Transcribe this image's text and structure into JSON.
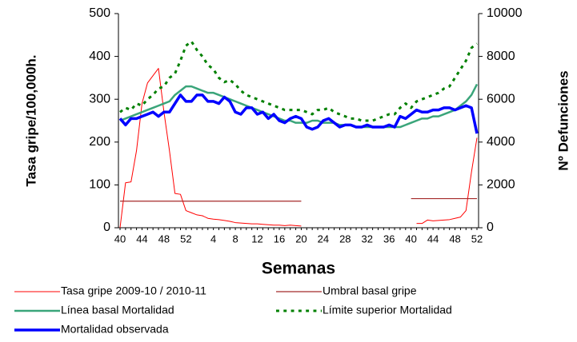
{
  "chart_data": {
    "type": "line",
    "categories": [
      40,
      null,
      null,
      null,
      44,
      null,
      null,
      null,
      48,
      null,
      null,
      null,
      52,
      null,
      null,
      null,
      null,
      4,
      null,
      null,
      null,
      8,
      null,
      null,
      null,
      12,
      null,
      null,
      null,
      16,
      null,
      null,
      null,
      20,
      null,
      null,
      null,
      24,
      null,
      null,
      null,
      28,
      null,
      null,
      null,
      32,
      null,
      null,
      null,
      36,
      null,
      null,
      null,
      40,
      null,
      null,
      null,
      44,
      null,
      null,
      null,
      48,
      null,
      null,
      null,
      52
    ],
    "x_label": "Semanas",
    "y_label": "Tasa gripe/100,000h.",
    "y2_label": "Nº Defunciones",
    "ylim": [
      0,
      500
    ],
    "yticks": [
      0,
      100,
      200,
      300,
      400,
      500
    ],
    "y2lim": [
      0,
      10000
    ],
    "y2ticks": [
      0,
      2000,
      4000,
      6000,
      8000,
      10000
    ],
    "series": [
      {
        "name": "Tasa gripe 2009-10 / 2010-11",
        "color": "#ff0000",
        "style": "solid",
        "linewidth": 1,
        "values": [
          0,
          105,
          107,
          180,
          290,
          338,
          355,
          372,
          270,
          180,
          80,
          78,
          40,
          35,
          30,
          28,
          22,
          20,
          19,
          17,
          15,
          12,
          11,
          10,
          9,
          9,
          8,
          7,
          6,
          6,
          5,
          6,
          5,
          4,
          null,
          null,
          null,
          null,
          null,
          null,
          null,
          null,
          null,
          null,
          null,
          null,
          null,
          null,
          null,
          null,
          null,
          null,
          null,
          null,
          10,
          10,
          18,
          16,
          17,
          18,
          19,
          22,
          25,
          40,
          130,
          210
        ]
      },
      {
        "name": "Umbral basal gripe",
        "color": "#a52a2a",
        "style": "solid",
        "linewidth": 1.2,
        "values": [
          62,
          62,
          62,
          62,
          62,
          62,
          62,
          62,
          62,
          62,
          62,
          62,
          62,
          62,
          62,
          62,
          62,
          62,
          62,
          62,
          62,
          62,
          62,
          62,
          62,
          62,
          62,
          62,
          62,
          62,
          62,
          62,
          62,
          62,
          null,
          null,
          null,
          null,
          null,
          null,
          null,
          null,
          null,
          null,
          null,
          null,
          null,
          null,
          null,
          null,
          null,
          null,
          null,
          68,
          68,
          68,
          68,
          68,
          68,
          68,
          68,
          68,
          68,
          68,
          68,
          68
        ]
      },
      {
        "name": "Línea basal Mortalidad",
        "color": "#3aa57a",
        "style": "solid",
        "linewidth": 2.5,
        "axis": "y2",
        "values": [
          5000,
          5100,
          5200,
          5300,
          5400,
          5500,
          5600,
          5700,
          5800,
          5900,
          6200,
          6400,
          6600,
          6600,
          6500,
          6400,
          6300,
          6300,
          6200,
          6100,
          6000,
          5900,
          5800,
          5700,
          5600,
          5500,
          5400,
          5300,
          5200,
          5100,
          5000,
          5000,
          4900,
          4900,
          4900,
          5000,
          5000,
          4900,
          4900,
          4900,
          4800,
          4800,
          4800,
          4700,
          4700,
          4700,
          4700,
          4700,
          4700,
          4700,
          4700,
          4700,
          4800,
          4900,
          5000,
          5100,
          5100,
          5200,
          5200,
          5300,
          5400,
          5500,
          5700,
          5900,
          6200,
          6700
        ]
      },
      {
        "name": "Límite superior Mortalidad",
        "color": "#008000",
        "style": "dotted",
        "linewidth": 3,
        "axis": "y2",
        "values": [
          5400,
          5600,
          5500,
          5800,
          5700,
          6000,
          6200,
          6500,
          6600,
          7000,
          7200,
          7800,
          8500,
          8700,
          8300,
          8000,
          7600,
          7400,
          7000,
          6800,
          6900,
          6700,
          6400,
          6200,
          6100,
          6000,
          5900,
          5800,
          5700,
          5600,
          5500,
          5500,
          5500,
          5500,
          5400,
          5300,
          5500,
          5500,
          5600,
          5400,
          5300,
          5200,
          5100,
          5100,
          5000,
          5000,
          5000,
          5100,
          5200,
          5300,
          5300,
          5600,
          5800,
          5600,
          5900,
          6000,
          6100,
          6200,
          6300,
          6500,
          6600,
          7000,
          7400,
          7800,
          8400,
          8600
        ]
      },
      {
        "name": "Mortalidad observada",
        "color": "#0000ff",
        "style": "solid",
        "linewidth": 3.5,
        "axis": "y2",
        "values": [
          5100,
          4800,
          5100,
          5100,
          5200,
          5300,
          5400,
          5200,
          5400,
          5400,
          5800,
          6200,
          5900,
          5900,
          6200,
          6200,
          5900,
          5900,
          5800,
          6100,
          5900,
          5400,
          5300,
          5600,
          5600,
          5300,
          5400,
          5100,
          5300,
          5000,
          4900,
          5100,
          5200,
          5100,
          4700,
          4600,
          4700,
          5000,
          5100,
          4900,
          4700,
          4800,
          4800,
          4700,
          4700,
          4800,
          4700,
          4700,
          4700,
          4800,
          4700,
          5200,
          5100,
          5300,
          5500,
          5400,
          5400,
          5500,
          5500,
          5600,
          5600,
          5500,
          5600,
          5700,
          5600,
          4400
        ]
      }
    ]
  }
}
